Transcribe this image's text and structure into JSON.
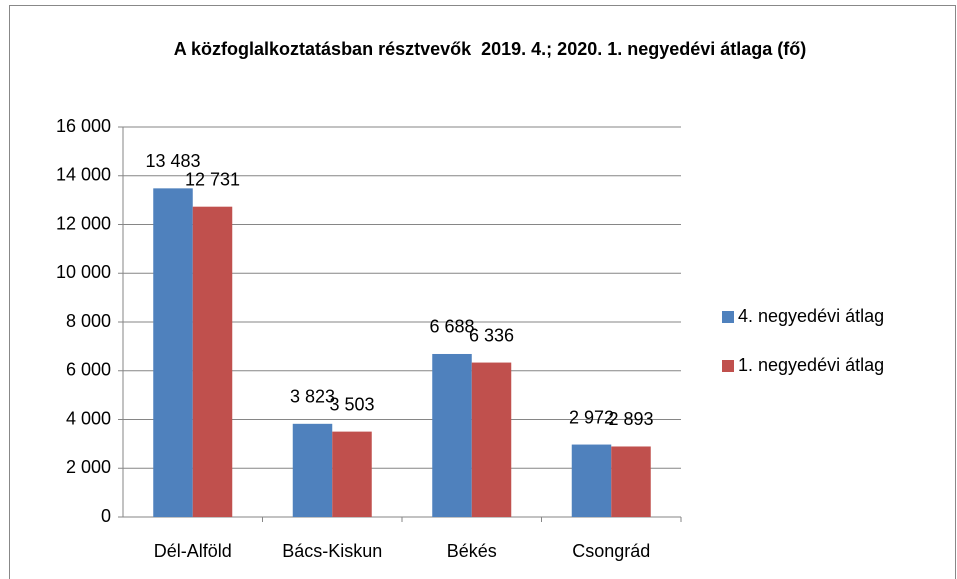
{
  "chart_data": {
    "type": "bar",
    "title": "A közfoglalkoztatásban résztvevők  2019. 4.; 2020. 1. negyedévi átlaga (fő)",
    "categories": [
      "Dél-Alföld",
      "Bács-Kiskun",
      "Békés",
      "Csongrád"
    ],
    "series": [
      {
        "name": "4. negyedévi átlag",
        "color": "#4f81bd",
        "values": [
          13483,
          3823,
          6688,
          2972
        ],
        "value_labels": [
          "13 483",
          "3 823",
          "6 688",
          "2 972"
        ]
      },
      {
        "name": "1. negyedévi átlag",
        "color": "#c0504d",
        "values": [
          12731,
          3503,
          6336,
          2893
        ],
        "value_labels": [
          "12 731",
          "3 503",
          "6 336",
          "2 893"
        ]
      }
    ],
    "ylim": [
      0,
      16000
    ],
    "yticks": [
      0,
      {
        "value": 2000,
        "label": "2 000"
      },
      {
        "value": 4000,
        "label": "4 000"
      },
      {
        "value": 6000,
        "label": "6 000"
      },
      {
        "value": 8000,
        "label": "8 000"
      },
      {
        "value": 10000,
        "label": "10 000"
      },
      {
        "value": 12000,
        "label": "12 000"
      },
      {
        "value": 14000,
        "label": "14 000"
      },
      {
        "value": 16000,
        "label": "16 000"
      }
    ],
    "grid": true,
    "legend": "right"
  }
}
